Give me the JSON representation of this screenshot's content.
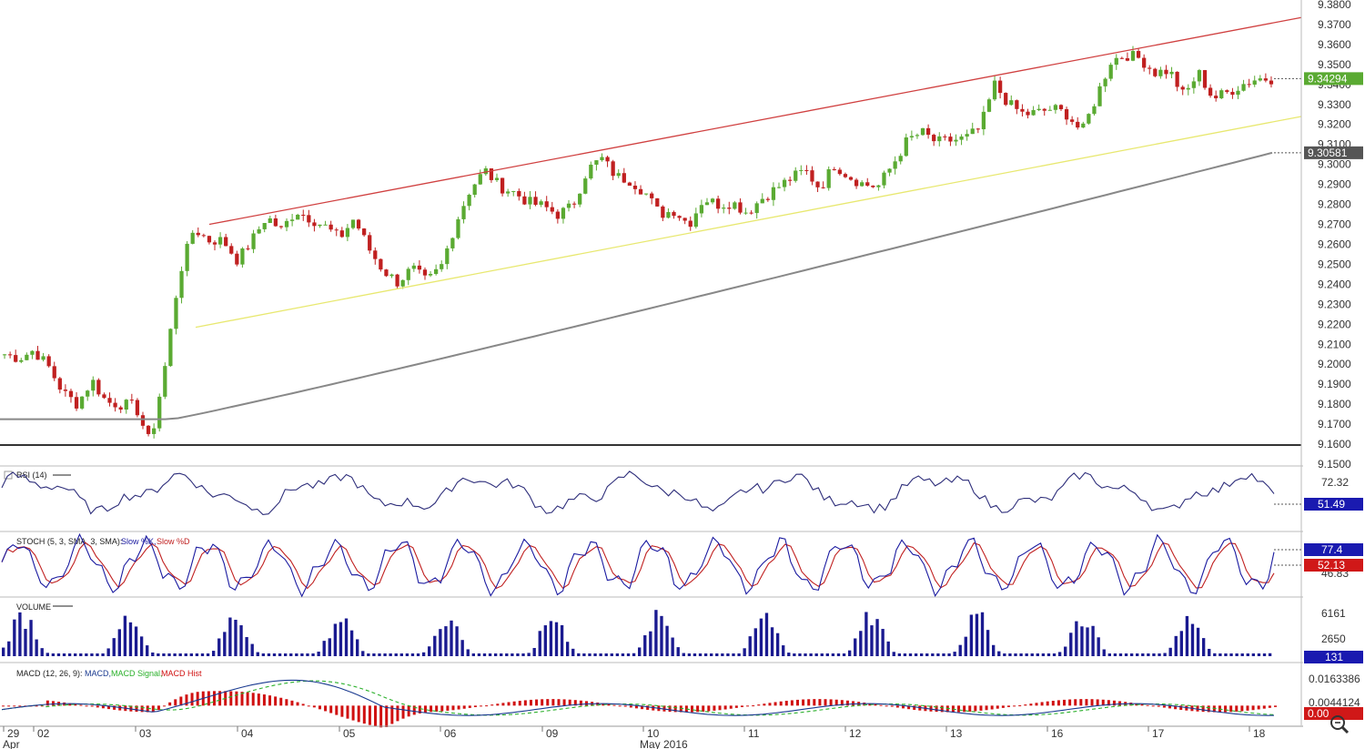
{
  "chart_data": [
    {
      "type": "candlestick",
      "pane": "price",
      "ylim": [
        9.15,
        9.38
      ],
      "yticks": [
        "9.3800",
        "9.3700",
        "9.3600",
        "9.3500",
        "9.3400",
        "9.3300",
        "9.3200",
        "9.3100",
        "9.3000",
        "9.2900",
        "9.2800",
        "9.2700",
        "9.2600",
        "9.2500",
        "9.2400",
        "9.2300",
        "9.2200",
        "9.2100",
        "9.2000",
        "9.1900",
        "9.1800",
        "9.1700",
        "9.1600",
        "9.1500"
      ],
      "last_price": "9.34294",
      "ma_value": "9.30581",
      "approx_close_path": [
        9.205,
        9.203,
        9.207,
        9.199,
        9.186,
        9.18,
        9.192,
        9.181,
        9.18,
        9.179,
        9.16,
        9.198,
        9.245,
        9.268,
        9.262,
        9.262,
        9.252,
        9.262,
        9.274,
        9.267,
        9.277,
        9.273,
        9.269,
        9.263,
        9.273,
        9.258,
        9.247,
        9.241,
        9.248,
        9.241,
        9.249,
        9.271,
        9.288,
        9.297,
        9.289,
        9.286,
        9.281,
        9.279,
        9.275,
        9.279,
        9.297,
        9.303,
        9.294,
        9.292,
        9.286,
        9.275,
        9.277,
        9.27,
        9.283,
        9.28,
        9.281,
        9.276,
        9.283,
        9.288,
        9.293,
        9.297,
        9.288,
        9.3,
        9.294,
        9.29,
        9.289,
        9.3,
        9.312,
        9.316,
        9.311,
        9.312,
        9.313,
        9.318,
        9.34,
        9.33,
        9.325,
        9.326,
        9.328,
        9.325,
        9.316,
        9.334,
        9.352,
        9.355,
        9.353,
        9.346,
        9.347,
        9.334,
        9.346,
        9.333,
        9.336,
        9.34,
        9.343,
        9.34294
      ],
      "upper_channel_line": "red",
      "lower_channel_line": "yellow",
      "moving_average_line": "gray"
    },
    {
      "type": "line",
      "pane": "oscillator",
      "name": "RSI (14)",
      "ticks": [
        "72.32"
      ],
      "last_value": "51.49"
    },
    {
      "type": "line",
      "pane": "oscillator",
      "name": "STOCH (5, 3, SMA, 3, SMA)",
      "series": [
        {
          "name": "Slow %K"
        },
        {
          "name": "Slow %D"
        }
      ],
      "ticks": [
        "46.83"
      ],
      "last_values": [
        "77.4",
        "52.13"
      ]
    },
    {
      "type": "bar",
      "pane": "volume",
      "name": "VOLUME",
      "ticks": [
        "6161",
        "2650"
      ],
      "last_value": "131"
    },
    {
      "type": "line",
      "pane": "macd",
      "name": "MACD (12, 26, 9)",
      "series": [
        {
          "name": "MACD"
        },
        {
          "name": "MACD Signal"
        },
        {
          "name": "MACD Hist"
        }
      ],
      "ticks": [
        "0.0163386",
        "0.0044124"
      ],
      "last_value": "0.00"
    }
  ],
  "labels": {
    "rsi": "RSI (14)",
    "stoch_prefix": "STOCH (5, 3, SMA, 3, SMA):",
    "stoch_k": "Slow %K,",
    "stoch_d": "Slow %D",
    "volume": "VOLUME",
    "macd_prefix": "MACD (12, 26, 9):",
    "macd_name": "MACD,",
    "macd_signal": "MACD Signal,",
    "macd_hist": "MACD Hist"
  },
  "x_axis": {
    "day_labels": [
      "29",
      "02",
      "03",
      "04",
      "05",
      "06",
      "09",
      "10",
      "11",
      "12",
      "13",
      "16",
      "17",
      "18"
    ],
    "month_labels": [
      "Apr",
      "May 2016"
    ]
  },
  "colors": {
    "up": "#5aaa32",
    "down": "#c02020",
    "upper_line": "#d04040",
    "lower_line": "#e8e870",
    "ma_line": "#888888",
    "price_box": "#5aaa32",
    "rsi": "#2d2d7a",
    "stoch_k": "#1a1aa0",
    "stoch_d": "#c02020",
    "volume": "#1a1a90",
    "macd": "#1a3a90",
    "macd_signal": "#2ab02a",
    "macd_hist": "#d01010"
  }
}
